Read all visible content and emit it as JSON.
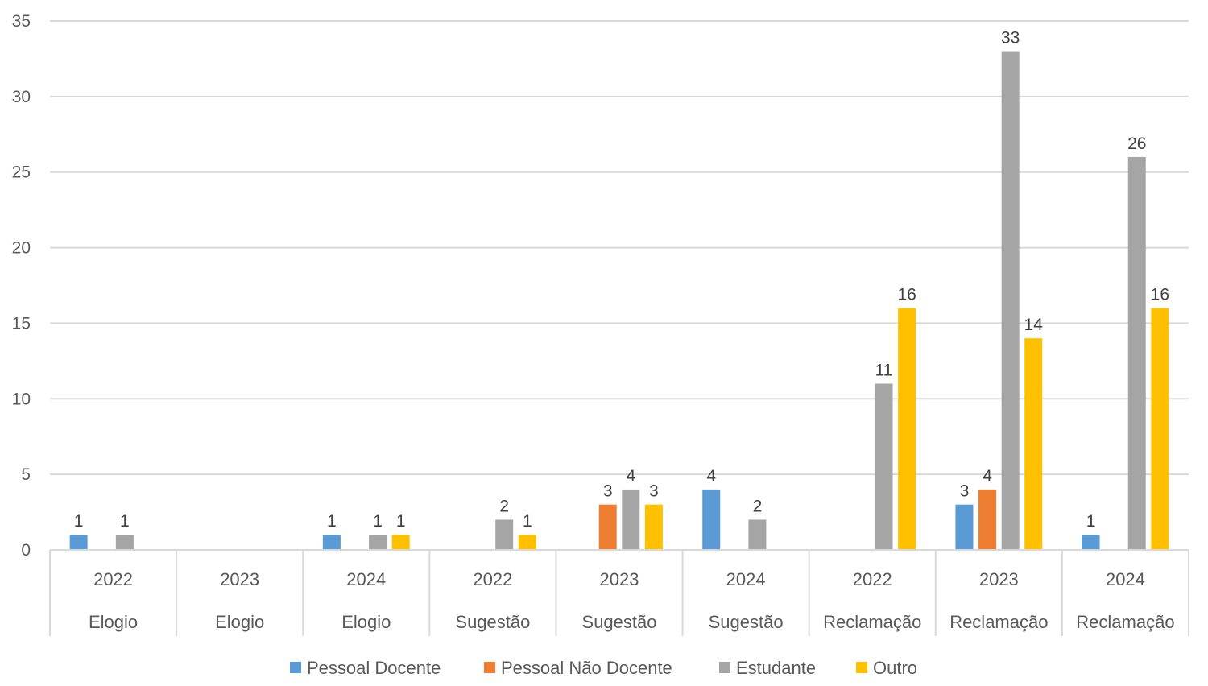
{
  "chart_data": {
    "type": "bar",
    "title": "",
    "xlabel": "",
    "ylabel": "",
    "ylim": [
      0,
      35
    ],
    "yticks": [
      0,
      5,
      10,
      15,
      20,
      25,
      30,
      35
    ],
    "grid": true,
    "legend_position": "bottom",
    "categories": [
      {
        "year": "2022",
        "group": "Elogio"
      },
      {
        "year": "2023",
        "group": "Elogio"
      },
      {
        "year": "2024",
        "group": "Elogio"
      },
      {
        "year": "2022",
        "group": "Sugestão"
      },
      {
        "year": "2023",
        "group": "Sugestão"
      },
      {
        "year": "2024",
        "group": "Sugestão"
      },
      {
        "year": "2022",
        "group": "Reclamação"
      },
      {
        "year": "2023",
        "group": "Reclamação"
      },
      {
        "year": "2024",
        "group": "Reclamação"
      }
    ],
    "series": [
      {
        "name": "Pessoal Docente",
        "color": "#5B9BD5",
        "values": [
          1,
          null,
          1,
          null,
          null,
          4,
          null,
          3,
          1
        ]
      },
      {
        "name": "Pessoal Não Docente",
        "color": "#ED7D31",
        "values": [
          null,
          null,
          null,
          null,
          3,
          null,
          null,
          4,
          null
        ]
      },
      {
        "name": "Estudante",
        "color": "#A5A5A5",
        "values": [
          1,
          null,
          1,
          2,
          4,
          2,
          11,
          33,
          26
        ]
      },
      {
        "name": "Outro",
        "color": "#FFC000",
        "values": [
          null,
          null,
          1,
          1,
          3,
          null,
          16,
          14,
          16
        ]
      }
    ]
  }
}
